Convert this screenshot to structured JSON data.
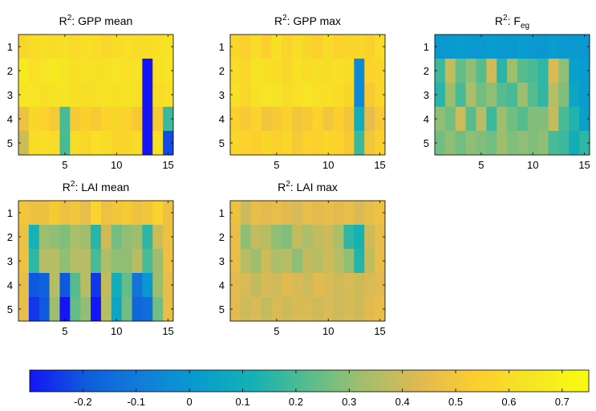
{
  "chart_data": [
    {
      "type": "heatmap",
      "title": "R²: GPP mean",
      "rows": [
        1,
        2,
        3,
        4,
        5
      ],
      "cols": [
        1,
        2,
        3,
        4,
        5,
        6,
        7,
        8,
        9,
        10,
        11,
        12,
        13,
        14,
        15
      ],
      "xticks": [
        5,
        10,
        15
      ],
      "yticks": [
        1,
        2,
        3,
        4,
        5
      ],
      "values": [
        [
          0.58,
          0.6,
          0.62,
          0.6,
          0.61,
          0.59,
          0.62,
          0.6,
          0.58,
          0.6,
          0.62,
          0.6,
          0.6,
          0.62,
          0.63
        ],
        [
          0.66,
          0.62,
          0.64,
          0.66,
          0.64,
          0.62,
          0.63,
          0.62,
          0.62,
          0.64,
          0.62,
          0.63,
          -0.3,
          0.62,
          0.64
        ],
        [
          0.64,
          0.64,
          0.62,
          0.63,
          0.64,
          0.62,
          0.61,
          0.62,
          0.63,
          0.62,
          0.63,
          0.62,
          -0.3,
          0.6,
          0.62
        ],
        [
          0.48,
          0.58,
          0.56,
          0.52,
          0.2,
          0.52,
          0.55,
          0.52,
          0.56,
          0.58,
          0.56,
          0.52,
          -0.3,
          0.52,
          0.18
        ],
        [
          0.4,
          0.6,
          0.62,
          0.6,
          0.2,
          0.6,
          0.58,
          0.62,
          0.6,
          0.56,
          0.58,
          0.6,
          -0.3,
          0.62,
          -0.22
        ]
      ]
    },
    {
      "type": "heatmap",
      "title": "R²: GPP max",
      "rows": [
        1,
        2,
        3,
        4,
        5
      ],
      "cols": [
        1,
        2,
        3,
        4,
        5,
        6,
        7,
        8,
        9,
        10,
        11,
        12,
        13,
        14,
        15
      ],
      "xticks": [
        5,
        10,
        15
      ],
      "yticks": [
        1,
        2,
        3,
        4,
        5
      ],
      "values": [
        [
          0.58,
          0.55,
          0.6,
          0.54,
          0.62,
          0.56,
          0.6,
          0.58,
          0.55,
          0.6,
          0.56,
          0.58,
          0.58,
          0.55,
          0.6
        ],
        [
          0.6,
          0.58,
          0.63,
          0.62,
          0.6,
          0.58,
          0.62,
          0.6,
          0.61,
          0.6,
          0.62,
          0.6,
          -0.05,
          0.56,
          0.58
        ],
        [
          0.62,
          0.58,
          0.62,
          0.64,
          0.63,
          0.6,
          0.62,
          0.64,
          0.62,
          0.62,
          0.6,
          0.58,
          -0.05,
          0.52,
          0.58
        ],
        [
          0.55,
          0.52,
          0.56,
          0.5,
          0.52,
          0.55,
          0.5,
          0.52,
          0.56,
          0.5,
          0.54,
          0.5,
          0.1,
          0.45,
          0.52
        ],
        [
          0.58,
          0.56,
          0.54,
          0.58,
          0.55,
          0.58,
          0.52,
          0.56,
          0.55,
          0.58,
          0.56,
          0.52,
          0.18,
          0.5,
          0.55
        ]
      ]
    },
    {
      "type": "heatmap",
      "title": "R²: Feg",
      "title_main": "R",
      "title_sup": "2",
      "title_text": ": F",
      "title_sub": "eg",
      "rows": [
        1,
        2,
        3,
        4,
        5
      ],
      "cols": [
        1,
        2,
        3,
        4,
        5,
        6,
        7,
        8,
        9,
        10,
        11,
        12,
        13,
        14,
        15
      ],
      "xticks": [
        5,
        10,
        15
      ],
      "yticks": [
        1,
        2,
        3,
        4,
        5
      ],
      "values": [
        [
          0.0,
          0.0,
          0.02,
          0.0,
          0.0,
          0.02,
          0.0,
          0.0,
          0.02,
          0.0,
          0.0,
          0.02,
          0.0,
          0.0,
          0.0
        ],
        [
          0.18,
          0.38,
          0.24,
          0.3,
          0.22,
          0.4,
          0.15,
          0.32,
          0.22,
          0.2,
          0.16,
          0.42,
          0.3,
          0.04,
          0.02
        ],
        [
          0.15,
          0.32,
          0.2,
          0.34,
          0.26,
          0.3,
          0.22,
          0.2,
          0.32,
          0.22,
          0.16,
          0.36,
          0.28,
          0.06,
          0.02
        ],
        [
          0.3,
          0.26,
          0.4,
          0.22,
          0.36,
          0.18,
          0.32,
          0.26,
          0.22,
          0.28,
          0.28,
          0.38,
          0.2,
          0.14,
          0.04
        ],
        [
          0.26,
          0.3,
          0.26,
          0.3,
          0.28,
          0.26,
          0.32,
          0.28,
          0.3,
          0.28,
          0.3,
          0.2,
          0.18,
          0.1,
          0.16
        ]
      ]
    },
    {
      "type": "heatmap",
      "title": "R²: LAI mean",
      "rows": [
        1,
        2,
        3,
        4,
        5
      ],
      "cols": [
        1,
        2,
        3,
        4,
        5,
        6,
        7,
        8,
        9,
        10,
        11,
        12,
        13,
        14,
        15
      ],
      "xticks": [
        5,
        10,
        15
      ],
      "yticks": [
        1,
        2,
        3,
        4,
        5
      ],
      "values": [
        [
          0.5,
          0.48,
          0.48,
          0.52,
          0.48,
          0.5,
          0.46,
          0.56,
          0.48,
          0.5,
          0.52,
          0.48,
          0.5,
          0.56,
          0.48
        ],
        [
          0.48,
          0.12,
          0.32,
          0.3,
          0.28,
          0.34,
          0.32,
          0.15,
          0.4,
          0.26,
          0.3,
          0.32,
          0.16,
          0.4,
          0.48
        ],
        [
          0.48,
          0.16,
          0.36,
          0.36,
          0.3,
          0.36,
          0.36,
          0.2,
          0.34,
          0.3,
          0.3,
          0.36,
          0.2,
          0.32,
          0.48
        ],
        [
          0.46,
          -0.2,
          -0.18,
          0.36,
          -0.2,
          0.22,
          0.36,
          -0.25,
          0.38,
          0.1,
          0.24,
          -0.12,
          0.0,
          0.32,
          0.46
        ],
        [
          0.46,
          -0.25,
          -0.2,
          0.32,
          -0.3,
          0.24,
          0.3,
          -0.3,
          0.36,
          0.06,
          0.26,
          -0.16,
          -0.14,
          0.26,
          0.46
        ]
      ]
    },
    {
      "type": "heatmap",
      "title": "R²: LAI max",
      "rows": [
        1,
        2,
        3,
        4,
        5
      ],
      "cols": [
        1,
        2,
        3,
        4,
        5,
        6,
        7,
        8,
        9,
        10,
        11,
        12,
        13,
        14,
        15
      ],
      "xticks": [
        5,
        10,
        15
      ],
      "yticks": [
        1,
        2,
        3,
        4,
        5
      ],
      "values": [
        [
          0.48,
          0.4,
          0.46,
          0.44,
          0.46,
          0.44,
          0.42,
          0.46,
          0.44,
          0.46,
          0.44,
          0.46,
          0.42,
          0.46,
          0.48
        ],
        [
          0.46,
          0.3,
          0.38,
          0.36,
          0.3,
          0.28,
          0.38,
          0.34,
          0.38,
          0.4,
          0.34,
          0.16,
          0.12,
          0.4,
          0.46
        ],
        [
          0.46,
          0.36,
          0.32,
          0.4,
          0.34,
          0.36,
          0.3,
          0.38,
          0.36,
          0.4,
          0.36,
          0.3,
          0.14,
          0.38,
          0.46
        ],
        [
          0.44,
          0.42,
          0.38,
          0.42,
          0.4,
          0.44,
          0.42,
          0.4,
          0.44,
          0.42,
          0.4,
          0.42,
          0.4,
          0.42,
          0.44
        ],
        [
          0.44,
          0.4,
          0.42,
          0.38,
          0.42,
          0.4,
          0.42,
          0.42,
          0.4,
          0.42,
          0.4,
          0.42,
          0.4,
          0.44,
          0.46
        ]
      ]
    }
  ],
  "colorbar": {
    "range": [
      -0.3,
      0.75
    ],
    "ticks": [
      -0.2,
      -0.1,
      0,
      0.1,
      0.2,
      0.3,
      0.4,
      0.5,
      0.6,
      0.7
    ],
    "tick_labels": [
      "-0.2",
      "-0.1",
      "0",
      "0.1",
      "0.2",
      "0.3",
      "0.4",
      "0.5",
      "0.6",
      "0.7"
    ],
    "colormap": "parula"
  }
}
